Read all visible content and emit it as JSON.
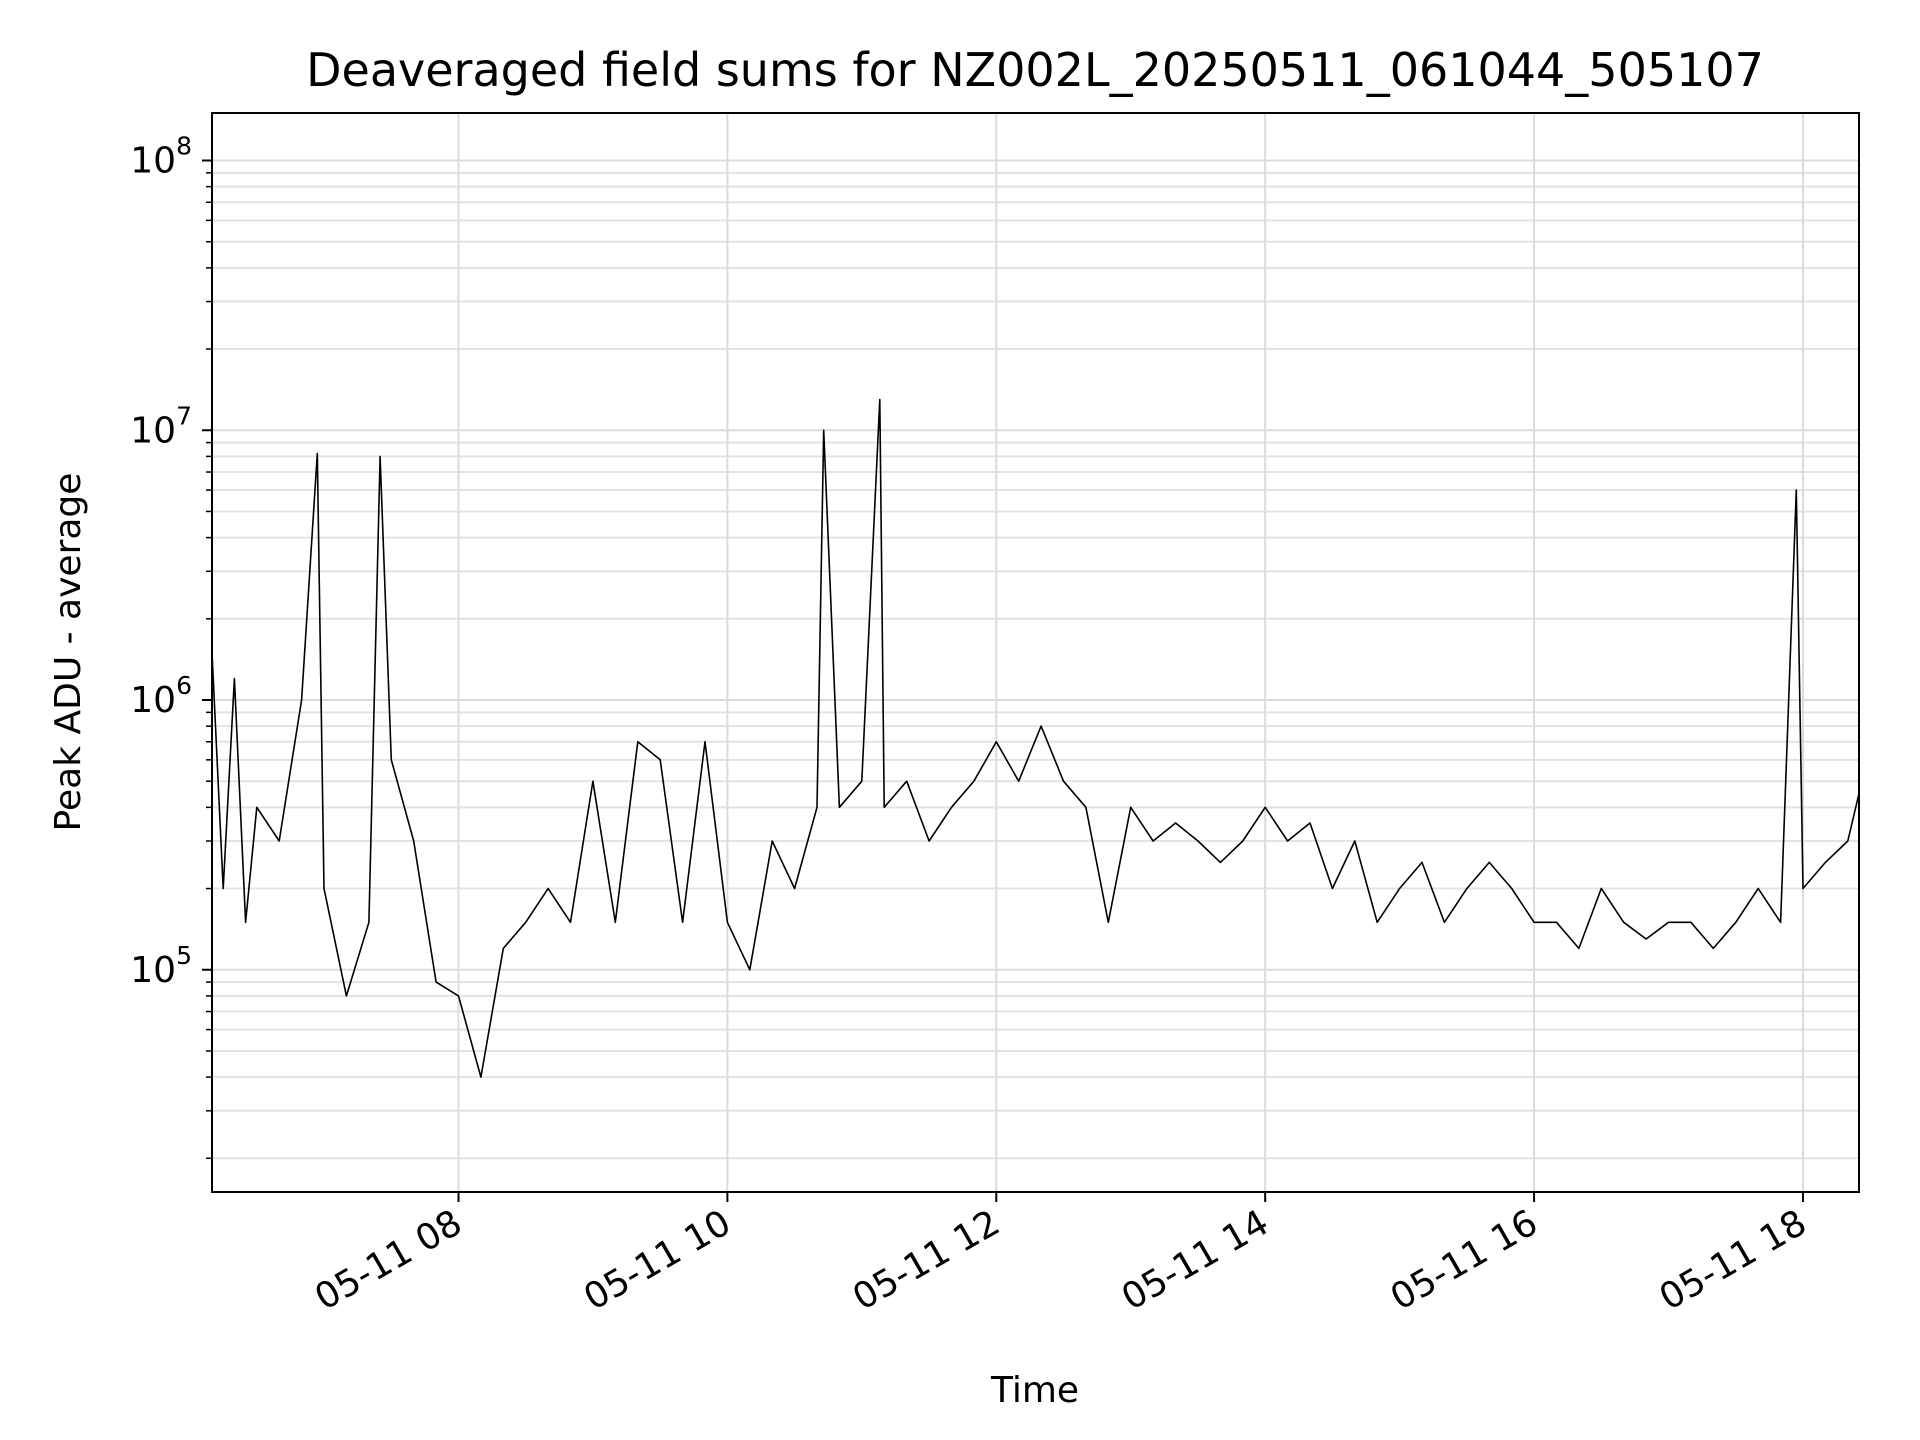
{
  "chart_data": {
    "type": "line",
    "title": "Deaveraged field sums for NZ002L_20250511_061044_505107",
    "xlabel": "Time",
    "ylabel": "Peak ADU - average",
    "yscale": "log",
    "xlim": [
      "2025-05-11 06:10",
      "2025-05-11 18:25"
    ],
    "ylim": [
      15000,
      150000000
    ],
    "grid": true,
    "line_color": "#000000",
    "x_ticks": [
      {
        "value": "2025-05-11 08:00",
        "label": "05-11 08"
      },
      {
        "value": "2025-05-11 10:00",
        "label": "05-11 10"
      },
      {
        "value": "2025-05-11 12:00",
        "label": "05-11 12"
      },
      {
        "value": "2025-05-11 14:00",
        "label": "05-11 14"
      },
      {
        "value": "2025-05-11 16:00",
        "label": "05-11 16"
      },
      {
        "value": "2025-05-11 18:00",
        "label": "05-11 18"
      }
    ],
    "y_ticks": [
      {
        "value": 100000,
        "base": "10",
        "exp": "5"
      },
      {
        "value": 1000000,
        "base": "10",
        "exp": "6"
      },
      {
        "value": 10000000,
        "base": "10",
        "exp": "7"
      },
      {
        "value": 100000000,
        "base": "10",
        "exp": "8"
      }
    ],
    "series": [
      {
        "x": [
          "2025-05-11 06:10",
          "2025-05-11 06:15",
          "2025-05-11 06:20",
          "2025-05-11 06:25",
          "2025-05-11 06:30",
          "2025-05-11 06:40",
          "2025-05-11 06:50",
          "2025-05-11 06:57",
          "2025-05-11 07:00",
          "2025-05-11 07:10",
          "2025-05-11 07:20",
          "2025-05-11 07:25",
          "2025-05-11 07:30",
          "2025-05-11 07:40",
          "2025-05-11 07:50",
          "2025-05-11 08:00",
          "2025-05-11 08:10",
          "2025-05-11 08:20",
          "2025-05-11 08:30",
          "2025-05-11 08:40",
          "2025-05-11 08:50",
          "2025-05-11 09:00",
          "2025-05-11 09:10",
          "2025-05-11 09:20",
          "2025-05-11 09:30",
          "2025-05-11 09:40",
          "2025-05-11 09:50",
          "2025-05-11 10:00",
          "2025-05-11 10:10",
          "2025-05-11 10:20",
          "2025-05-11 10:30",
          "2025-05-11 10:40",
          "2025-05-11 10:43",
          "2025-05-11 10:50",
          "2025-05-11 11:00",
          "2025-05-11 11:08",
          "2025-05-11 11:10",
          "2025-05-11 11:20",
          "2025-05-11 11:30",
          "2025-05-11 11:40",
          "2025-05-11 11:50",
          "2025-05-11 12:00",
          "2025-05-11 12:10",
          "2025-05-11 12:20",
          "2025-05-11 12:30",
          "2025-05-11 12:40",
          "2025-05-11 12:50",
          "2025-05-11 13:00",
          "2025-05-11 13:10",
          "2025-05-11 13:20",
          "2025-05-11 13:30",
          "2025-05-11 13:40",
          "2025-05-11 13:50",
          "2025-05-11 14:00",
          "2025-05-11 14:10",
          "2025-05-11 14:20",
          "2025-05-11 14:30",
          "2025-05-11 14:40",
          "2025-05-11 14:50",
          "2025-05-11 15:00",
          "2025-05-11 15:10",
          "2025-05-11 15:20",
          "2025-05-11 15:30",
          "2025-05-11 15:40",
          "2025-05-11 15:50",
          "2025-05-11 16:00",
          "2025-05-11 16:10",
          "2025-05-11 16:20",
          "2025-05-11 16:30",
          "2025-05-11 16:40",
          "2025-05-11 16:50",
          "2025-05-11 17:00",
          "2025-05-11 17:10",
          "2025-05-11 17:20",
          "2025-05-11 17:30",
          "2025-05-11 17:40",
          "2025-05-11 17:50",
          "2025-05-11 17:57",
          "2025-05-11 18:00",
          "2025-05-11 18:10",
          "2025-05-11 18:20",
          "2025-05-11 18:25"
        ],
        "y": [
          1500000,
          200000,
          1200000,
          150000,
          400000,
          300000,
          1000000,
          8200000,
          200000,
          80000,
          150000,
          8000000,
          600000,
          300000,
          90000,
          80000,
          40000,
          120000,
          150000,
          200000,
          150000,
          500000,
          150000,
          700000,
          600000,
          150000,
          700000,
          150000,
          100000,
          300000,
          200000,
          400000,
          10000000,
          400000,
          500000,
          13000000,
          400000,
          500000,
          300000,
          400000,
          500000,
          700000,
          500000,
          800000,
          500000,
          400000,
          150000,
          400000,
          300000,
          350000,
          300000,
          250000,
          300000,
          400000,
          300000,
          350000,
          200000,
          300000,
          150000,
          200000,
          250000,
          150000,
          200000,
          250000,
          200000,
          150000,
          150000,
          120000,
          200000,
          150000,
          130000,
          150000,
          150000,
          120000,
          150000,
          200000,
          150000,
          6000000,
          200000,
          250000,
          300000,
          450000
        ]
      }
    ]
  }
}
